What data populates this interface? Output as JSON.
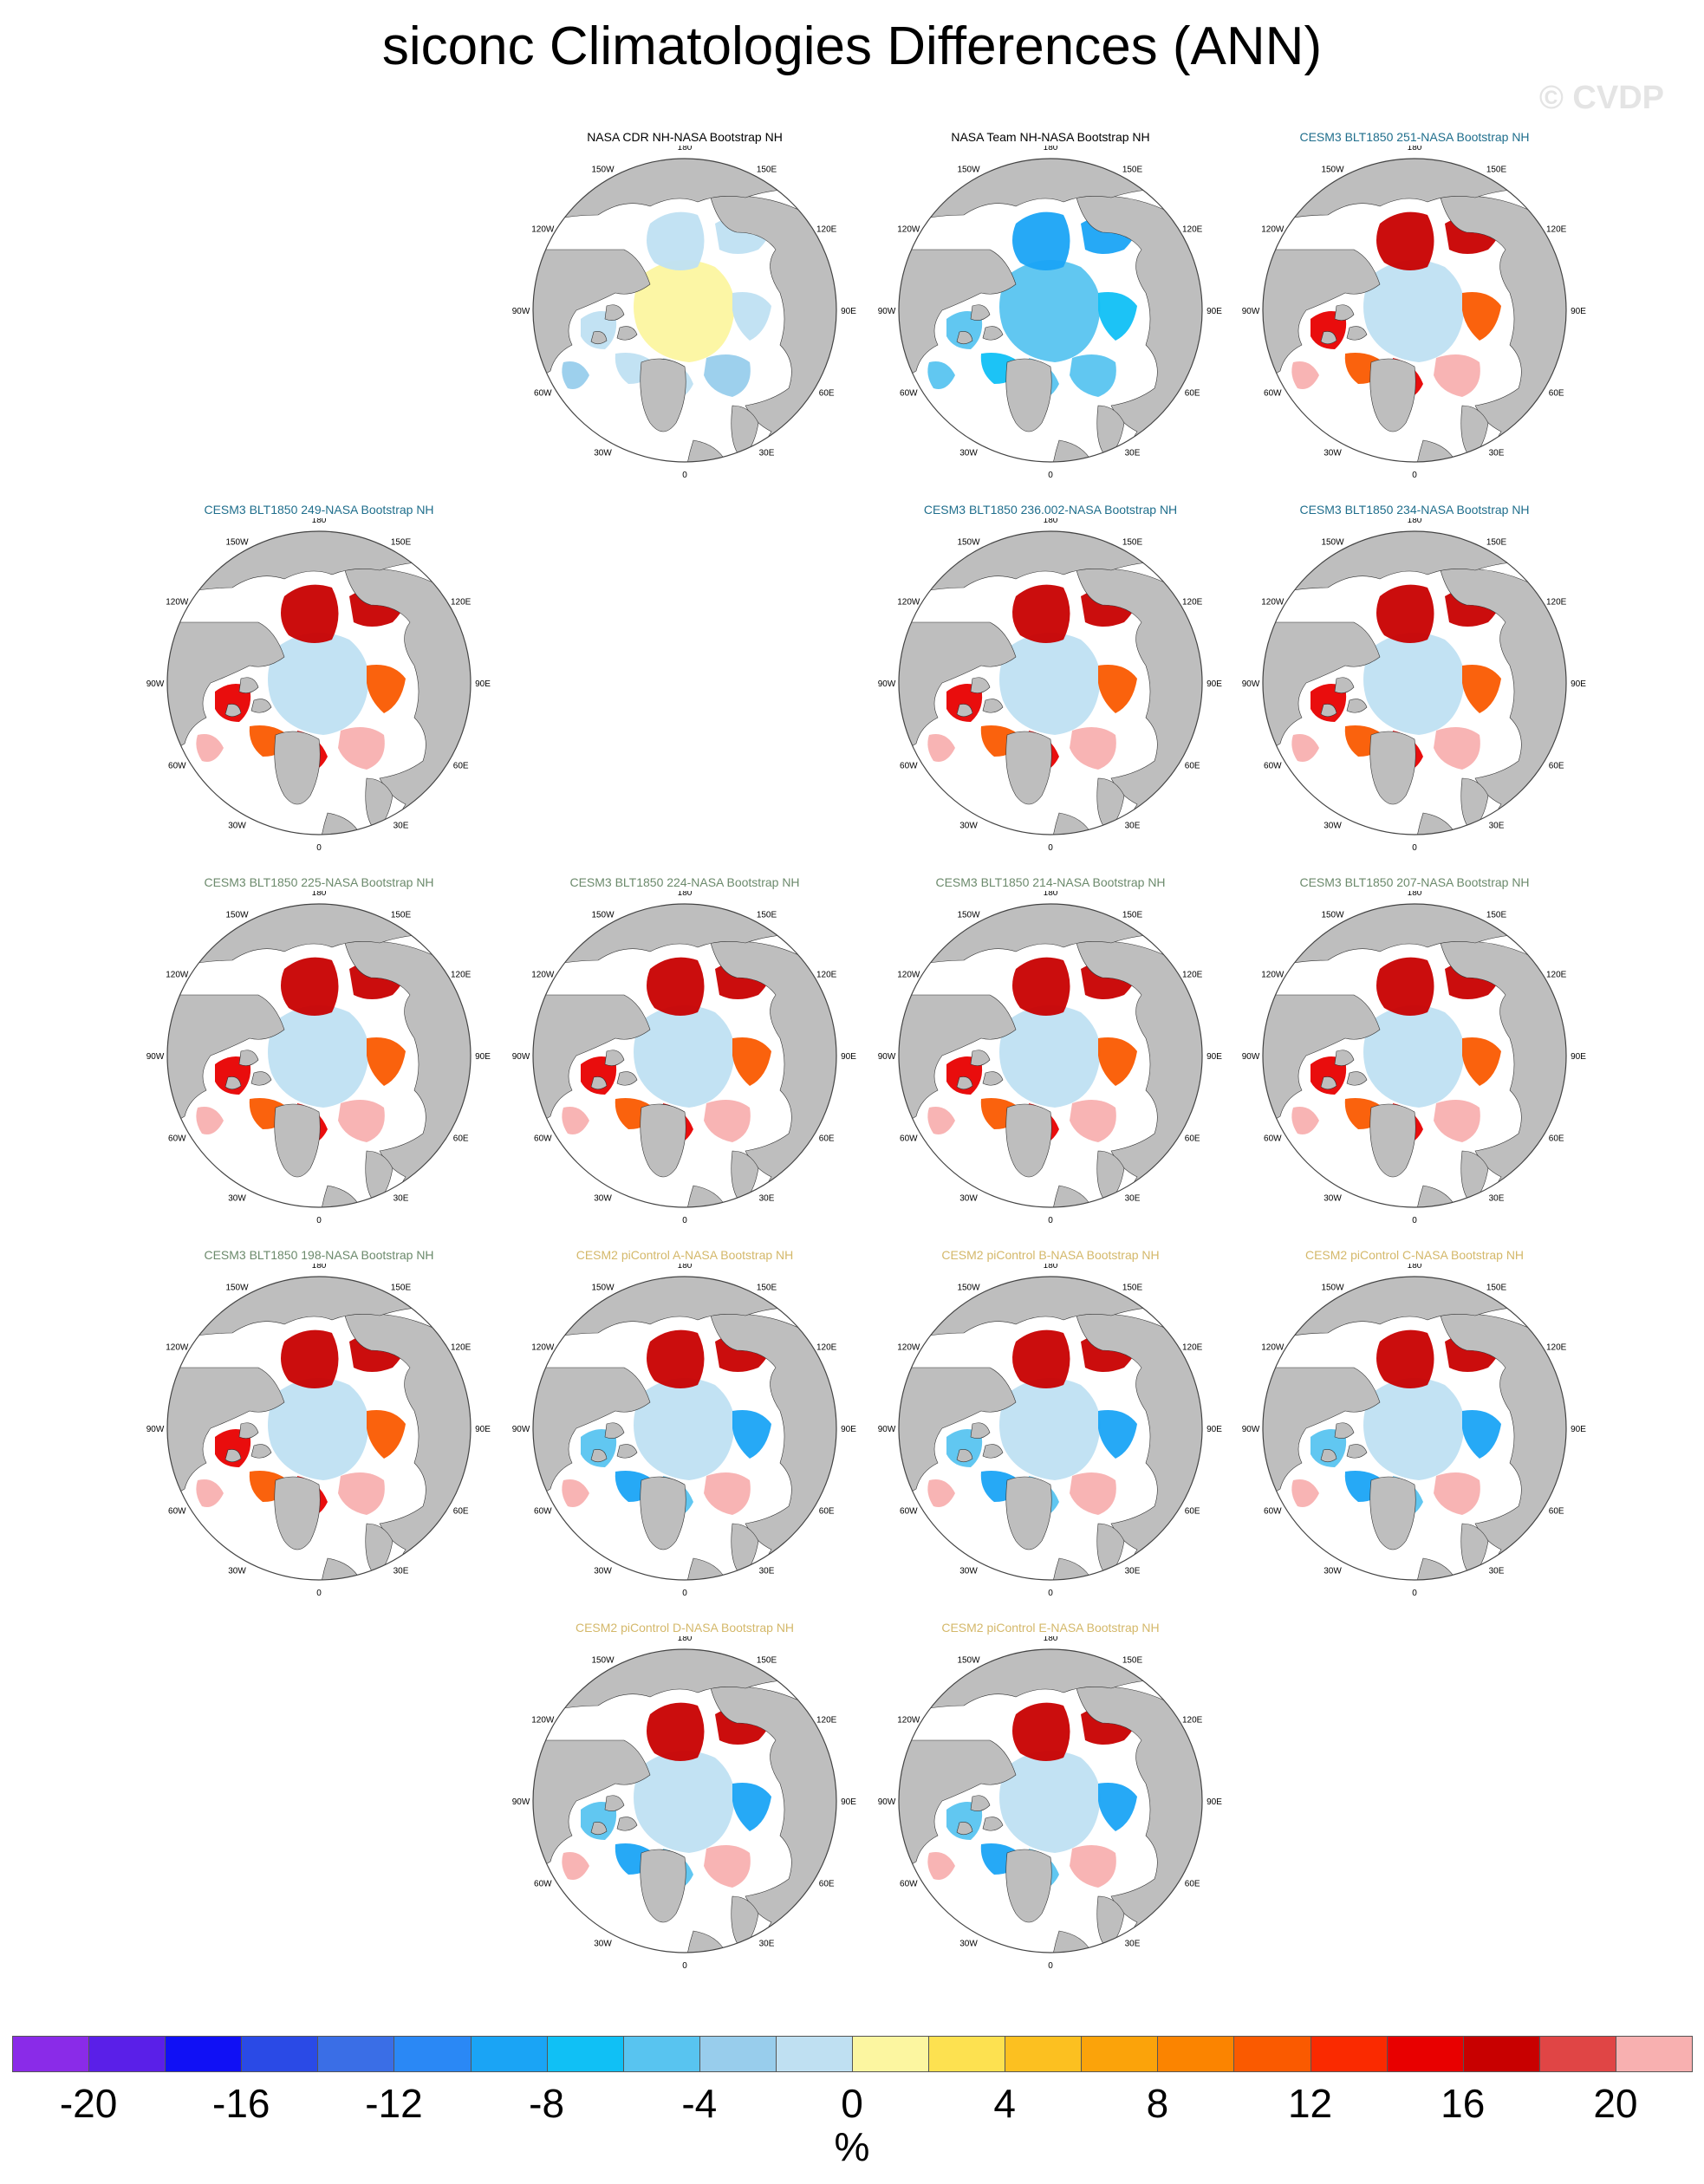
{
  "figure": {
    "title": "siconc Climatologies Differences (ANN)",
    "watermark": "© CVDP"
  },
  "colors": {
    "land": "#bebebe",
    "ocean": "#ffffff",
    "obs_title": "#000000",
    "cesm3_251_title": "#1f6e8c",
    "cesm3_green_title": "#6c8a6c",
    "cesm2_title": "#d4b86a"
  },
  "lon_labels": [
    "180",
    "150E",
    "120E",
    "90E",
    "60E",
    "30E",
    "0",
    "30W",
    "60W",
    "90W",
    "120W",
    "150W"
  ],
  "panels": [
    {
      "id": "p1",
      "title": "NASA CDR NH-NASA Bootstrap NH",
      "title_color": "#000000",
      "row": 0,
      "col": 1,
      "pattern": "cdr"
    },
    {
      "id": "p2",
      "title": "NASA Team NH-NASA Bootstrap NH",
      "title_color": "#000000",
      "row": 0,
      "col": 2,
      "pattern": "team"
    },
    {
      "id": "p3",
      "title": "CESM3 BLT1850 251-NASA Bootstrap NH",
      "title_color": "#1f6e8c",
      "row": 0,
      "col": 3,
      "pattern": "cesm3"
    },
    {
      "id": "p4",
      "title": "CESM3 BLT1850 249-NASA Bootstrap NH",
      "title_color": "#1f6e8c",
      "row": 1,
      "col": 0,
      "pattern": "cesm3"
    },
    {
      "id": "p5",
      "title": "CESM3 BLT1850 236.002-NASA Bootstrap NH",
      "title_color": "#1f6e8c",
      "row": 1,
      "col": 2,
      "pattern": "cesm3"
    },
    {
      "id": "p6",
      "title": "CESM3 BLT1850 234-NASA Bootstrap NH",
      "title_color": "#1f6e8c",
      "row": 1,
      "col": 3,
      "pattern": "cesm3"
    },
    {
      "id": "p7",
      "title": "CESM3 BLT1850 225-NASA Bootstrap NH",
      "title_color": "#6c8a6c",
      "row": 2,
      "col": 0,
      "pattern": "cesm3"
    },
    {
      "id": "p8",
      "title": "CESM3 BLT1850 224-NASA Bootstrap NH",
      "title_color": "#6c8a6c",
      "row": 2,
      "col": 1,
      "pattern": "cesm3"
    },
    {
      "id": "p9",
      "title": "CESM3 BLT1850 214-NASA Bootstrap NH",
      "title_color": "#6c8a6c",
      "row": 2,
      "col": 2,
      "pattern": "cesm3"
    },
    {
      "id": "p10",
      "title": "CESM3 BLT1850 207-NASA Bootstrap NH",
      "title_color": "#6c8a6c",
      "row": 2,
      "col": 3,
      "pattern": "cesm3"
    },
    {
      "id": "p11",
      "title": "CESM3 BLT1850 198-NASA Bootstrap NH",
      "title_color": "#6c8a6c",
      "row": 3,
      "col": 0,
      "pattern": "cesm3"
    },
    {
      "id": "p12",
      "title": "CESM2 piControl A-NASA Bootstrap NH",
      "title_color": "#d4b86a",
      "row": 3,
      "col": 1,
      "pattern": "cesm2"
    },
    {
      "id": "p13",
      "title": "CESM2 piControl B-NASA Bootstrap NH",
      "title_color": "#d4b86a",
      "row": 3,
      "col": 2,
      "pattern": "cesm2"
    },
    {
      "id": "p14",
      "title": "CESM2 piControl C-NASA Bootstrap NH",
      "title_color": "#d4b86a",
      "row": 3,
      "col": 3,
      "pattern": "cesm2"
    },
    {
      "id": "p15",
      "title": "CESM2 piControl D-NASA Bootstrap NH",
      "title_color": "#d4b86a",
      "row": 4,
      "col": 1,
      "pattern": "cesm2"
    },
    {
      "id": "p16",
      "title": "CESM2 piControl E-NASA Bootstrap NH",
      "title_color": "#d4b86a",
      "row": 4,
      "col": 2,
      "pattern": "cesm2"
    }
  ],
  "colorbar": {
    "units": "%",
    "tick_labels": [
      "-20",
      "-16",
      "-12",
      "-8",
      "-4",
      "0",
      "4",
      "8",
      "12",
      "16",
      "20"
    ],
    "colors": [
      "#8a2be8",
      "#5a1fe8",
      "#1010f5",
      "#2a4ae6",
      "#3a6ee6",
      "#2a88f5",
      "#1aa4f5",
      "#10c0f5",
      "#58c4f0",
      "#98cdec",
      "#bfe0f2",
      "#fcf6a0",
      "#fde150",
      "#fcc020",
      "#fba30a",
      "#fb8400",
      "#fa5a00",
      "#fa2a00",
      "#e80000",
      "#c80000",
      "#e04545",
      "#f8b0b0"
    ]
  }
}
